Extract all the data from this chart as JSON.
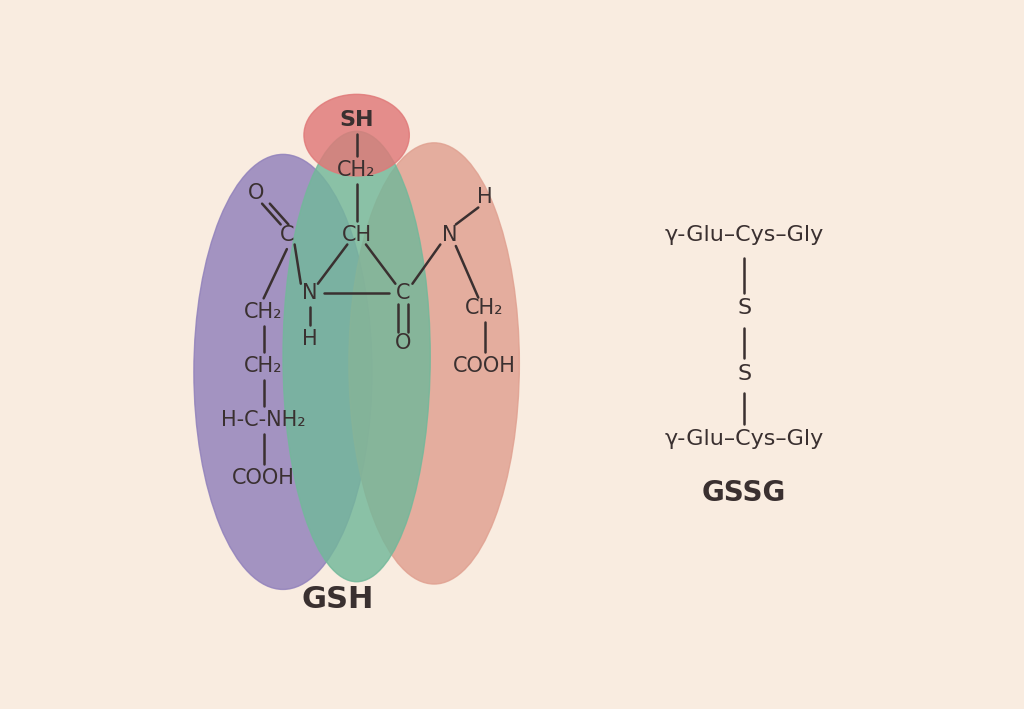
{
  "bg_color": "#f9ece0",
  "text_color": "#3a3030",
  "blob_purple": {
    "color": "#9080bb",
    "alpha": 0.82
  },
  "blob_green": {
    "color": "#72b89a",
    "alpha": 0.82
  },
  "blob_pink": {
    "color": "#e07878",
    "alpha": 0.82
  },
  "blob_salmon": {
    "color": "#e0a090",
    "alpha": 0.82
  },
  "gsh_label": "GSH",
  "gssg_label": "GSSG",
  "gssg_line1": "γ-Glu–Cys–Gly",
  "gssg_line2": "γ-Glu–Cys–Gly",
  "gssg_s1": "S",
  "gssg_s2": "S",
  "fs_chem": 15,
  "fs_label": 20,
  "fs_gssg": 16
}
